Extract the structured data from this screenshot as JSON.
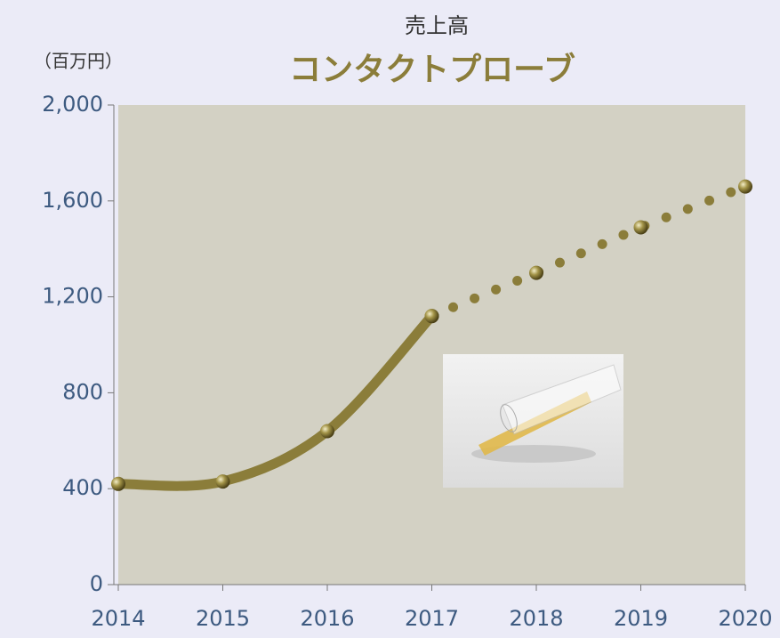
{
  "chart_data": {
    "type": "line",
    "subtitle": "売上高",
    "title": "コンタクトプローブ",
    "y_unit": "（百万円）",
    "x": [
      2014,
      2015,
      2016,
      2017,
      2018,
      2019,
      2020
    ],
    "xlim": [
      2014,
      2020
    ],
    "xticks": [
      2014,
      2015,
      2016,
      2017,
      2018,
      2019,
      2020
    ],
    "ylim": [
      0,
      2000
    ],
    "yticks": [
      0,
      {
        "value": 400,
        "label": "400"
      },
      {
        "value": 800,
        "label": "800"
      },
      {
        "value": 1200,
        "label": "1,200"
      },
      {
        "value": 1600,
        "label": "1,600"
      },
      {
        "value": 2000,
        "label": "2,000"
      }
    ],
    "series": [
      {
        "style": "solid",
        "color": "#8b7d3a",
        "values": [
          420,
          430,
          640,
          1120,
          null,
          null,
          null
        ]
      },
      {
        "style": "dotted",
        "color": "#8b7d3a",
        "values": [
          null,
          null,
          null,
          1120,
          1300,
          1490,
          1660
        ]
      }
    ]
  }
}
